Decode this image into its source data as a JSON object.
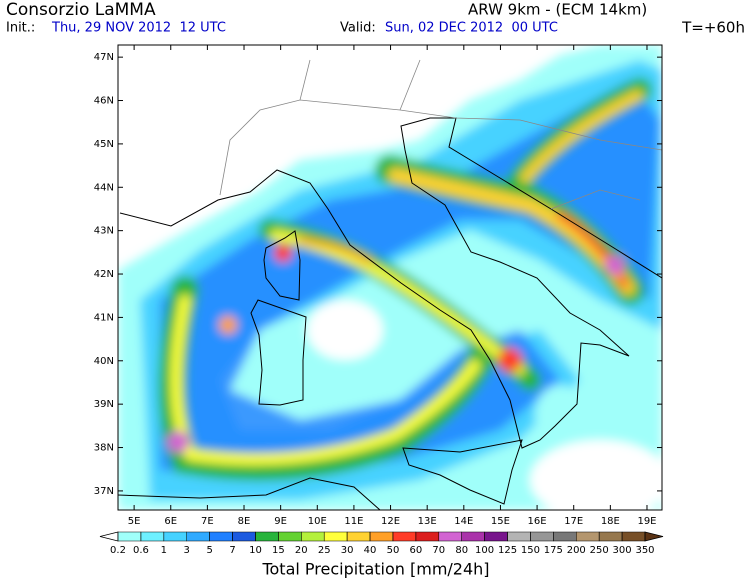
{
  "header": {
    "title": "Consorzio LaMMA",
    "model": "ARW 9km - (ECM 14km)",
    "init_label": "Init.:",
    "init_time": "Thu, 29 NOV 2012  12 UTC",
    "valid_label": "Valid:",
    "valid_time": "Sun, 02 DEC 2012  00 UTC",
    "lead": "T=+60h"
  },
  "map": {
    "lon_range": [
      4.56,
      19.41
    ],
    "lat_range": [
      36.56,
      47.28
    ],
    "lat_ticks": [
      {
        "value": 37,
        "label": "37N"
      },
      {
        "value": 38,
        "label": "38N"
      },
      {
        "value": 39,
        "label": "39N"
      },
      {
        "value": 40,
        "label": "40N"
      },
      {
        "value": 41,
        "label": "41N"
      },
      {
        "value": 42,
        "label": "42N"
      },
      {
        "value": 43,
        "label": "43N"
      },
      {
        "value": 44,
        "label": "44N"
      },
      {
        "value": 45,
        "label": "45N"
      },
      {
        "value": 46,
        "label": "46N"
      },
      {
        "value": 47,
        "label": "47N"
      }
    ],
    "lon_ticks": [
      {
        "value": 5,
        "label": "5E"
      },
      {
        "value": 6,
        "label": "6E"
      },
      {
        "value": 7,
        "label": "7E"
      },
      {
        "value": 8,
        "label": "8E"
      },
      {
        "value": 9,
        "label": "9E"
      },
      {
        "value": 10,
        "label": "10E"
      },
      {
        "value": 11,
        "label": "11E"
      },
      {
        "value": 12,
        "label": "12E"
      },
      {
        "value": 13,
        "label": "13E"
      },
      {
        "value": 14,
        "label": "14E"
      },
      {
        "value": 15,
        "label": "15E"
      },
      {
        "value": 16,
        "label": "16E"
      },
      {
        "value": 17,
        "label": "17E"
      },
      {
        "value": 18,
        "label": "18E"
      },
      {
        "value": 19,
        "label": "19E"
      }
    ]
  },
  "colorbar": {
    "title": "Total Precipitation [mm/24h]",
    "levels": [
      0.2,
      0.6,
      1,
      3,
      5,
      7,
      10,
      15,
      20,
      25,
      30,
      40,
      50,
      60,
      70,
      80,
      100,
      125,
      150,
      175,
      200,
      250,
      300,
      350
    ],
    "colors": [
      "#ffffff",
      "#a0fffa",
      "#6ef0ff",
      "#46d2ff",
      "#30aaff",
      "#2080ff",
      "#1c5ae0",
      "#28b43c",
      "#64d232",
      "#b4f03c",
      "#ffff3c",
      "#ffd232",
      "#ffa028",
      "#ff3c28",
      "#dc1e1e",
      "#d264d2",
      "#aa32aa",
      "#78148c",
      "#b4b4b4",
      "#969696",
      "#787878",
      "#b4966e",
      "#96784e",
      "#785028",
      "#5a3214"
    ]
  }
}
